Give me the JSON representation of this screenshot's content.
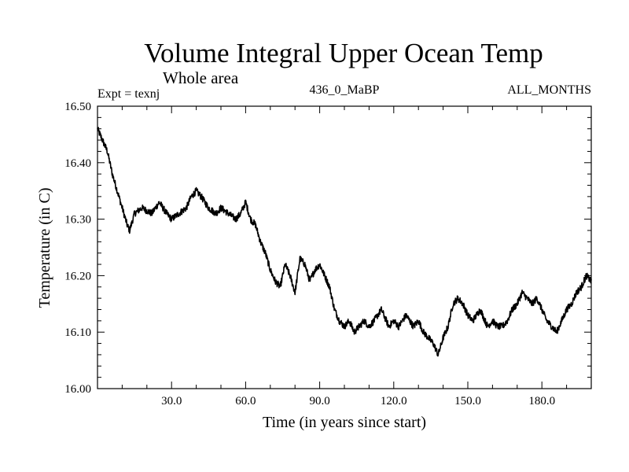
{
  "chart_data": {
    "type": "line",
    "title": "Volume Integral Upper Ocean Temp",
    "subtitle": "Whole area",
    "experiment": "Expt = texnj",
    "run_label": "436_0_MaBP",
    "months_label": "ALL_MONTHS",
    "xlabel": "Time (in years since start)",
    "ylabel": "Temperature (in C)",
    "xlim": [
      0,
      200
    ],
    "ylim": [
      16.0,
      16.5
    ],
    "x_ticks": [
      30,
      60,
      90,
      120,
      150,
      180
    ],
    "x_tick_labels": [
      "30.0",
      "60.0",
      "90.0",
      "120.0",
      "150.0",
      "180.0"
    ],
    "y_ticks": [
      16.0,
      16.1,
      16.2,
      16.3,
      16.4,
      16.5
    ],
    "y_tick_labels": [
      "16.00",
      "16.10",
      "16.20",
      "16.30",
      "16.40",
      "16.50"
    ],
    "noise_amplitude": 0.006,
    "series": [
      {
        "name": "Volume Integral Upper Ocean Temp",
        "x": [
          0,
          2,
          4,
          6,
          8,
          10,
          12,
          13,
          15,
          18,
          22,
          25,
          28,
          30,
          33,
          36,
          38,
          40,
          42,
          45,
          48,
          50,
          53,
          56,
          58,
          60,
          62,
          64,
          66,
          68,
          70,
          72,
          74,
          76,
          78,
          80,
          82,
          84,
          86,
          88,
          90,
          92,
          94,
          96,
          98,
          100,
          102,
          104,
          106,
          108,
          110,
          112,
          115,
          118,
          120,
          122,
          125,
          128,
          130,
          132,
          134,
          136,
          138,
          140,
          142,
          144,
          146,
          148,
          150,
          152,
          155,
          158,
          160,
          162,
          164,
          166,
          168,
          170,
          172,
          174,
          176,
          178,
          180,
          182,
          184,
          186,
          188,
          190,
          192,
          194,
          196,
          198,
          200
        ],
        "values": [
          16.46,
          16.44,
          16.42,
          16.38,
          16.35,
          16.32,
          16.29,
          16.28,
          16.31,
          16.32,
          16.31,
          16.33,
          16.31,
          16.3,
          16.31,
          16.32,
          16.34,
          16.35,
          16.34,
          16.32,
          16.31,
          16.32,
          16.31,
          16.3,
          16.31,
          16.33,
          16.3,
          16.29,
          16.26,
          16.24,
          16.21,
          16.19,
          16.18,
          16.22,
          16.2,
          16.17,
          16.23,
          16.22,
          16.19,
          16.21,
          16.22,
          16.2,
          16.18,
          16.14,
          16.12,
          16.11,
          16.12,
          16.1,
          16.11,
          16.12,
          16.11,
          16.12,
          16.14,
          16.11,
          16.12,
          16.11,
          16.13,
          16.11,
          16.12,
          16.1,
          16.09,
          16.08,
          16.06,
          16.09,
          16.11,
          16.15,
          16.16,
          16.15,
          16.13,
          16.12,
          16.14,
          16.11,
          16.12,
          16.11,
          16.11,
          16.12,
          16.14,
          16.15,
          16.17,
          16.16,
          16.15,
          16.16,
          16.14,
          16.12,
          16.11,
          16.1,
          16.12,
          16.14,
          16.15,
          16.17,
          16.18,
          16.2,
          16.19
        ]
      }
    ]
  }
}
